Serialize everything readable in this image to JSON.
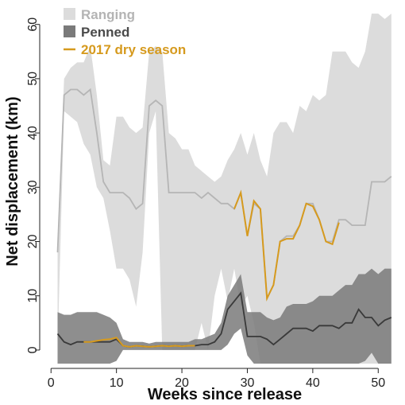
{
  "chart_data": {
    "type": "line",
    "title": "",
    "xlabel": "Weeks since release",
    "ylabel": "Net displacement (km)",
    "xlim": [
      -1,
      53
    ],
    "ylim": [
      -2.5,
      64.5
    ],
    "xticks": [
      0,
      10,
      20,
      30,
      40,
      50
    ],
    "yticks": [
      0,
      10,
      20,
      30,
      40,
      50,
      60
    ],
    "grid": false,
    "legend_position": "top-left",
    "colors": {
      "ranging_band": "#dcdcdc",
      "ranging_line": "#b5b5b5",
      "penned_band": "#7a7a7a",
      "penned_line": "#3a3a3a",
      "dry_season": "#d69a1e",
      "ranging_text": "#b4b4b4",
      "penned_text": "#4a4a4a"
    },
    "legend": [
      {
        "label": "Ranging",
        "key": "ranging"
      },
      {
        "label": "Penned",
        "key": "penned"
      },
      {
        "label": "2017 dry season",
        "key": "dry"
      }
    ],
    "series": [
      {
        "name": "Ranging",
        "x": [
          1,
          2,
          3,
          4,
          5,
          6,
          7,
          8,
          9,
          10,
          11,
          12,
          13,
          14,
          15,
          16,
          17,
          18,
          19,
          20,
          21,
          22,
          23,
          24,
          25,
          26,
          27,
          28,
          29,
          30,
          31,
          32,
          33,
          34,
          35,
          36,
          37,
          38,
          39,
          40,
          41,
          42,
          43,
          44,
          45,
          46,
          47,
          48,
          49,
          50,
          51,
          52
        ],
        "mean": [
          18,
          47,
          48,
          48,
          47,
          48,
          40,
          31,
          29,
          29,
          29,
          28,
          26,
          27,
          45,
          46,
          45,
          29,
          29,
          29,
          29,
          29,
          28,
          29,
          28,
          27,
          27,
          26,
          29,
          21,
          27,
          26,
          9.5,
          12,
          20,
          21,
          21,
          23,
          27,
          27,
          24,
          20,
          20,
          24,
          24,
          23,
          23,
          23,
          31,
          31,
          31,
          32
        ],
        "lower": [
          0,
          44,
          43,
          42,
          38,
          36,
          30,
          28,
          22,
          15,
          15,
          13,
          8,
          18,
          40,
          44,
          0,
          0,
          0,
          0,
          0,
          0,
          5,
          0,
          10,
          15,
          9,
          15,
          8,
          10,
          5,
          -2.5,
          -2.5,
          -2.5,
          -2.5,
          -2.5,
          -2.5,
          -2.5,
          -2.5,
          -2.5,
          -2.5,
          -2.5,
          -2.5,
          -2.5,
          -2.5,
          -2.5,
          -2.5,
          -2.5,
          -2.5,
          -2.5,
          -2.5,
          -2.5
        ],
        "upper": [
          20,
          50,
          52,
          53,
          53,
          56,
          47,
          35,
          34,
          43,
          43,
          41,
          40,
          41,
          55,
          56,
          55,
          40,
          39,
          37,
          37,
          34,
          33,
          32,
          31,
          32,
          35,
          37,
          40,
          36,
          40,
          35,
          32,
          40,
          42,
          42,
          40,
          45,
          44,
          47,
          46,
          47,
          55,
          55,
          55,
          53,
          52,
          55,
          62,
          62,
          61,
          62
        ]
      },
      {
        "name": "Penned",
        "x": [
          1,
          2,
          3,
          4,
          5,
          6,
          7,
          8,
          9,
          10,
          11,
          12,
          13,
          14,
          15,
          16,
          17,
          18,
          19,
          20,
          21,
          22,
          23,
          24,
          25,
          26,
          27,
          28,
          29,
          30,
          31,
          32,
          33,
          34,
          35,
          36,
          37,
          38,
          39,
          40,
          41,
          42,
          43,
          44,
          45,
          46,
          47,
          48,
          49,
          50,
          51,
          52
        ],
        "mean": [
          3,
          1.5,
          1,
          1.5,
          1.5,
          1.5,
          1.5,
          1.5,
          1.5,
          2,
          0.8,
          0.6,
          0.8,
          0.7,
          0.6,
          0.7,
          0.8,
          0.7,
          0.8,
          0.7,
          0.8,
          0.8,
          1,
          1,
          1.5,
          3,
          7.5,
          9,
          10.5,
          2.5,
          2.5,
          2.5,
          2,
          1,
          2,
          3,
          4,
          4,
          4,
          3.5,
          4.5,
          4.5,
          4.5,
          4,
          5,
          5,
          7.5,
          6,
          6,
          4.5,
          5.5,
          6
        ],
        "lower": [
          -2.5,
          -2.5,
          -2.5,
          -2.5,
          -2.5,
          -2.5,
          -2.5,
          -2.5,
          -2.5,
          -2,
          0,
          0,
          0,
          0,
          0,
          0,
          0,
          0,
          0,
          0,
          0,
          0,
          0,
          0,
          0,
          0,
          1,
          3,
          4,
          -1,
          -2.5,
          -2.5,
          -2.5,
          -2.5,
          -2.5,
          -2.5,
          -2.5,
          -2.5,
          -2.5,
          -2.5,
          -2.5,
          -2.5,
          -2.5,
          -2.5,
          -2.5,
          -2.5,
          -2.5,
          -2,
          -0.5,
          -2.5,
          -2.5,
          -2.5
        ],
        "upper": [
          7,
          6.5,
          6.5,
          7,
          7,
          7,
          7,
          6.5,
          6,
          5,
          2,
          1.5,
          1.5,
          1.5,
          1.2,
          1.5,
          1.5,
          1.5,
          1.5,
          1.5,
          1.5,
          2,
          2,
          2.5,
          3,
          5,
          10,
          12,
          14,
          7,
          7,
          7,
          6,
          5.5,
          6,
          8,
          8.5,
          8.5,
          8.5,
          9,
          10,
          10,
          10,
          11,
          12,
          12,
          14,
          14,
          15,
          14,
          15,
          15
        ]
      },
      {
        "name": "2017 dry season",
        "segments": [
          {
            "x": [
              5,
              6,
              7,
              8,
              9,
              10,
              11,
              12,
              13,
              14,
              15,
              16,
              17,
              18,
              19,
              20,
              21,
              22
            ],
            "y": [
              1.5,
              1.5,
              1.7,
              1.9,
              2,
              2.3,
              0.8,
              0.6,
              0.8,
              0.7,
              0.6,
              0.7,
              0.8,
              0.7,
              0.8,
              0.7,
              0.8,
              0.8
            ]
          },
          {
            "x": [
              28,
              29,
              30,
              31,
              32,
              33,
              34,
              35,
              36,
              37,
              38,
              39,
              40,
              41,
              42,
              43,
              44
            ],
            "y": [
              26,
              29,
              21,
              27.5,
              26,
              9.5,
              12,
              20,
              20.5,
              20.5,
              23,
              27,
              26.5,
              24,
              20,
              19.5,
              23.5
            ]
          }
        ]
      }
    ]
  }
}
